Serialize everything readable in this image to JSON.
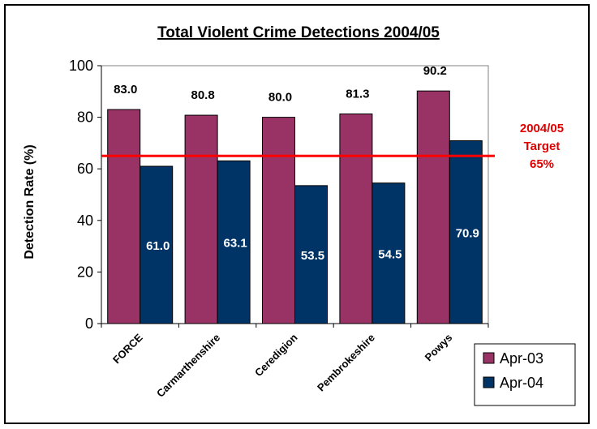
{
  "chart_data": {
    "type": "bar",
    "title": "Total Violent Crime Detections 2004/05",
    "ylabel": "Detection Rate (%)",
    "xlabel": "",
    "categories": [
      "FORCE",
      "Carmarthenshire",
      "Ceredigion",
      "Pembrokeshire",
      "Powys"
    ],
    "series": [
      {
        "name": "Apr-03",
        "values": [
          83.0,
          80.8,
          80.0,
          81.3,
          90.2
        ],
        "color": "#993366",
        "label_color": "#000000"
      },
      {
        "name": "Apr-04",
        "values": [
          61.0,
          63.1,
          53.5,
          54.5,
          70.9
        ],
        "color": "#003366",
        "label_color": "#ffffff"
      }
    ],
    "ylim": [
      0,
      100
    ],
    "yticks": [
      0,
      20,
      40,
      60,
      80,
      100
    ],
    "grid": false,
    "legend": "bottom-right",
    "target_line": {
      "value": 65,
      "color": "#ff0000",
      "label_lines": [
        "2004/05",
        "Target",
        "65%"
      ]
    }
  }
}
